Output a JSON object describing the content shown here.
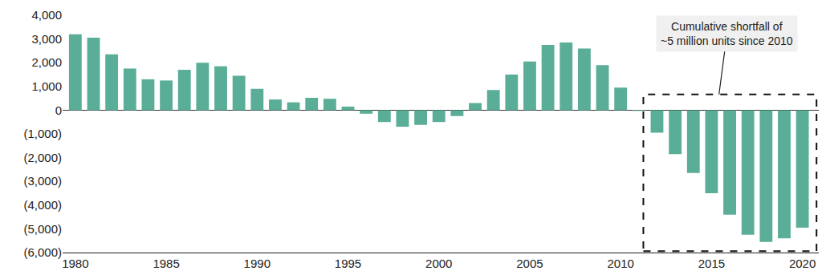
{
  "chart_data": {
    "type": "bar",
    "x": [
      1980,
      1981,
      1982,
      1983,
      1984,
      1985,
      1986,
      1987,
      1988,
      1989,
      1990,
      1991,
      1992,
      1993,
      1994,
      1995,
      1996,
      1997,
      1998,
      1999,
      2000,
      2001,
      2002,
      2003,
      2004,
      2005,
      2006,
      2007,
      2008,
      2009,
      2010,
      2011,
      2012,
      2013,
      2014,
      2015,
      2016,
      2017,
      2018,
      2019,
      2020
    ],
    "values": [
      3200,
      3050,
      2350,
      1750,
      1300,
      1250,
      1700,
      2000,
      1850,
      1450,
      900,
      450,
      330,
      520,
      480,
      150,
      -150,
      -500,
      -700,
      -620,
      -500,
      -250,
      300,
      850,
      1500,
      2050,
      2750,
      2850,
      2600,
      1900,
      950,
      -30,
      -950,
      -1850,
      -2650,
      -3500,
      -4400,
      -5250,
      -5550,
      -5400,
      -4950
    ],
    "color": "#5aae98",
    "xlim": [
      1979.3,
      2020.9
    ],
    "xticks": [
      1980,
      1985,
      1990,
      1995,
      2000,
      2005,
      2010,
      2015,
      2020
    ],
    "ylim": [
      -6000,
      4000
    ],
    "yticks": [
      {
        "value": 4000,
        "label": "4,000"
      },
      {
        "value": 3000,
        "label": "3,000"
      },
      {
        "value": 2000,
        "label": "2,000"
      },
      {
        "value": 1000,
        "label": "1,000"
      },
      0,
      {
        "value": -1000,
        "label": "(1,000)"
      },
      {
        "value": -2000,
        "label": "(2,000)"
      },
      {
        "value": -3000,
        "label": "(3,000)"
      },
      {
        "value": -4000,
        "label": "(4,000)"
      },
      {
        "value": -5000,
        "label": "(5,000)"
      },
      {
        "value": -6000,
        "label": "(6,000)"
      }
    ],
    "grid": false,
    "annotation": [
      "Cumulative shortfall of",
      "~5 million units since 2010"
    ]
  }
}
